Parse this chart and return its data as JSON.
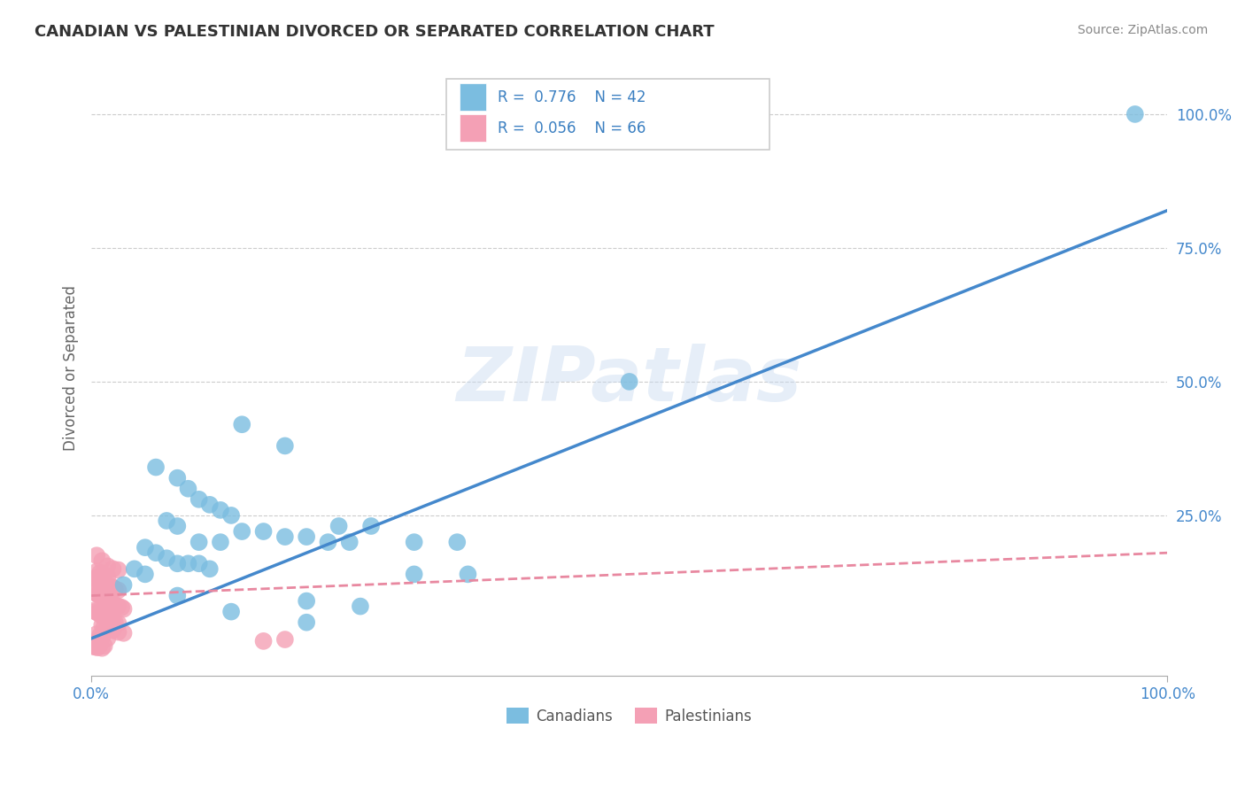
{
  "title": "CANADIAN VS PALESTINIAN DIVORCED OR SEPARATED CORRELATION CHART",
  "source": "Source: ZipAtlas.com",
  "ylabel": "Divorced or Separated",
  "xlim": [
    0.0,
    1.0
  ],
  "ylim": [
    -0.05,
    1.1
  ],
  "y_tick_labels": [
    "25.0%",
    "50.0%",
    "75.0%",
    "100.0%"
  ],
  "y_tick_positions": [
    0.25,
    0.5,
    0.75,
    1.0
  ],
  "canadian_color": "#7bbde0",
  "palestinian_color": "#f4a0b5",
  "canadian_line_color": "#4488cc",
  "palestinian_line_color": "#e888a0",
  "watermark": "ZIPatlas",
  "background_color": "#ffffff",
  "grid_color": "#cccccc",
  "canadian_points": [
    [
      0.97,
      1.0
    ],
    [
      0.5,
      0.5
    ],
    [
      0.14,
      0.42
    ],
    [
      0.18,
      0.38
    ],
    [
      0.06,
      0.34
    ],
    [
      0.08,
      0.32
    ],
    [
      0.09,
      0.3
    ],
    [
      0.1,
      0.28
    ],
    [
      0.11,
      0.27
    ],
    [
      0.12,
      0.26
    ],
    [
      0.13,
      0.25
    ],
    [
      0.07,
      0.24
    ],
    [
      0.08,
      0.23
    ],
    [
      0.23,
      0.23
    ],
    [
      0.26,
      0.23
    ],
    [
      0.14,
      0.22
    ],
    [
      0.16,
      0.22
    ],
    [
      0.18,
      0.21
    ],
    [
      0.2,
      0.21
    ],
    [
      0.1,
      0.2
    ],
    [
      0.12,
      0.2
    ],
    [
      0.22,
      0.2
    ],
    [
      0.24,
      0.2
    ],
    [
      0.3,
      0.2
    ],
    [
      0.34,
      0.2
    ],
    [
      0.05,
      0.19
    ],
    [
      0.06,
      0.18
    ],
    [
      0.07,
      0.17
    ],
    [
      0.08,
      0.16
    ],
    [
      0.09,
      0.16
    ],
    [
      0.1,
      0.16
    ],
    [
      0.11,
      0.15
    ],
    [
      0.04,
      0.15
    ],
    [
      0.05,
      0.14
    ],
    [
      0.3,
      0.14
    ],
    [
      0.35,
      0.14
    ],
    [
      0.03,
      0.12
    ],
    [
      0.08,
      0.1
    ],
    [
      0.2,
      0.09
    ],
    [
      0.25,
      0.08
    ],
    [
      0.13,
      0.07
    ],
    [
      0.2,
      0.05
    ]
  ],
  "palestinian_points": [
    [
      0.005,
      0.175
    ],
    [
      0.01,
      0.165
    ],
    [
      0.015,
      0.155
    ],
    [
      0.02,
      0.15
    ],
    [
      0.025,
      0.148
    ],
    [
      0.005,
      0.145
    ],
    [
      0.008,
      0.142
    ],
    [
      0.01,
      0.14
    ],
    [
      0.012,
      0.138
    ],
    [
      0.015,
      0.135
    ],
    [
      0.003,
      0.132
    ],
    [
      0.006,
      0.13
    ],
    [
      0.008,
      0.128
    ],
    [
      0.01,
      0.125
    ],
    [
      0.012,
      0.122
    ],
    [
      0.015,
      0.12
    ],
    [
      0.018,
      0.118
    ],
    [
      0.02,
      0.115
    ],
    [
      0.022,
      0.112
    ],
    [
      0.025,
      0.11
    ],
    [
      0.002,
      0.108
    ],
    [
      0.004,
      0.105
    ],
    [
      0.006,
      0.102
    ],
    [
      0.008,
      0.1
    ],
    [
      0.01,
      0.098
    ],
    [
      0.012,
      0.095
    ],
    [
      0.014,
      0.092
    ],
    [
      0.016,
      0.09
    ],
    [
      0.018,
      0.088
    ],
    [
      0.02,
      0.085
    ],
    [
      0.022,
      0.082
    ],
    [
      0.025,
      0.08
    ],
    [
      0.028,
      0.078
    ],
    [
      0.03,
      0.075
    ],
    [
      0.002,
      0.072
    ],
    [
      0.004,
      0.07
    ],
    [
      0.006,
      0.068
    ],
    [
      0.008,
      0.065
    ],
    [
      0.01,
      0.062
    ],
    [
      0.012,
      0.06
    ],
    [
      0.015,
      0.058
    ],
    [
      0.018,
      0.055
    ],
    [
      0.02,
      0.052
    ],
    [
      0.022,
      0.05
    ],
    [
      0.025,
      0.048
    ],
    [
      0.01,
      0.045
    ],
    [
      0.012,
      0.042
    ],
    [
      0.015,
      0.04
    ],
    [
      0.018,
      0.038
    ],
    [
      0.02,
      0.035
    ],
    [
      0.025,
      0.032
    ],
    [
      0.03,
      0.03
    ],
    [
      0.005,
      0.028
    ],
    [
      0.008,
      0.025
    ],
    [
      0.01,
      0.022
    ],
    [
      0.015,
      0.02
    ],
    [
      0.18,
      0.018
    ],
    [
      0.16,
      0.015
    ],
    [
      0.003,
      0.012
    ],
    [
      0.005,
      0.01
    ],
    [
      0.008,
      0.008
    ],
    [
      0.012,
      0.006
    ],
    [
      0.002,
      0.005
    ],
    [
      0.004,
      0.004
    ],
    [
      0.006,
      0.003
    ],
    [
      0.01,
      0.002
    ]
  ],
  "can_line_x0": 0.0,
  "can_line_y0": 0.02,
  "can_line_x1": 1.0,
  "can_line_y1": 0.82,
  "pal_line_x0": 0.0,
  "pal_line_y0": 0.1,
  "pal_line_x1": 1.0,
  "pal_line_y1": 0.18
}
